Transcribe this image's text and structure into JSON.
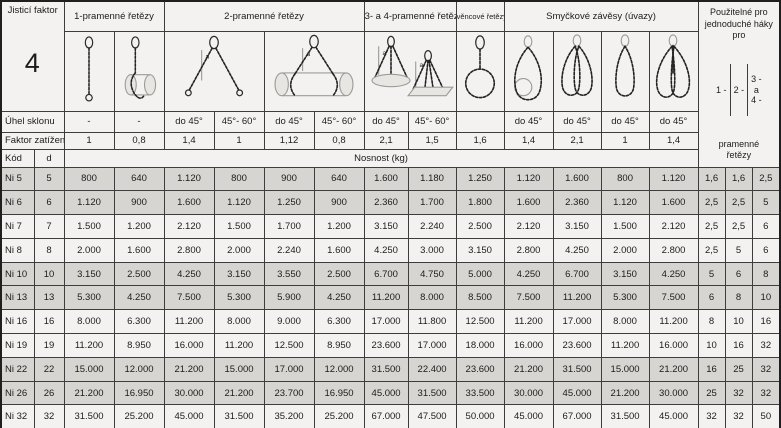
{
  "securing_factor": {
    "label": "Jisticí faktor",
    "value": "4"
  },
  "groups": [
    {
      "label": "1-pramenné řetězy"
    },
    {
      "label": "2-pramenné řetězy"
    },
    {
      "label": "3- a 4-pramenné řetězy"
    },
    {
      "label": "věncové řetězy"
    },
    {
      "label": "Smyčkové závěsy (úvazy)"
    }
  ],
  "right_header": {
    "title": "Použitelné pro\njednoduché háky\npro",
    "items": [
      "1 -",
      "2 -",
      "3 -\na\n4 -"
    ],
    "footer": "pramenné\nřetězy"
  },
  "diagram_angle_label": "a",
  "diagrams": [
    "single-leg-chain",
    "choked-drum-chain",
    "two-leg-chain",
    "two-leg-choked-drum",
    "three-and-four-leg-chain",
    "endless-chain",
    "loop-sling-choked",
    "loop-sling-double",
    "loop-sling-basket",
    "loop-sling-double-choked"
  ],
  "angle_row": {
    "label": "Úhel sklonu",
    "values": [
      "-",
      "-",
      "do 45°",
      "45°- 60°",
      "do 45°",
      "45°- 60°",
      "do 45°",
      "45°- 60°",
      "",
      "do 45°",
      "do 45°",
      "do 45°",
      "do 45°"
    ]
  },
  "factor_row": {
    "label": "Faktor zatížení",
    "values": [
      "1",
      "0,8",
      "1,4",
      "1",
      "1,12",
      "0,8",
      "2,1",
      "1,5",
      "1,6",
      "1,4",
      "2,1",
      "1",
      "1,4"
    ]
  },
  "capacity_header": {
    "kod": "Kód",
    "d": "d",
    "nosnost": "Nosnost  (kg)"
  },
  "rows": [
    {
      "kod": "Ni 5",
      "d": "5",
      "values": [
        "800",
        "640",
        "1.120",
        "800",
        "900",
        "640",
        "1.600",
        "1.180",
        "1.250",
        "1.120",
        "1.600",
        "800",
        "1.120"
      ],
      "hooks": [
        "1,6",
        "1,6",
        "2,5"
      ],
      "shaded": true
    },
    {
      "kod": "Ni 6",
      "d": "6",
      "values": [
        "1.120",
        "900",
        "1.600",
        "1.120",
        "1.250",
        "900",
        "2.360",
        "1.700",
        "1.800",
        "1.600",
        "2.360",
        "1.120",
        "1.600"
      ],
      "hooks": [
        "2,5",
        "2,5",
        "5"
      ],
      "shaded": true
    },
    {
      "kod": "Ni 7",
      "d": "7",
      "values": [
        "1.500",
        "1.200",
        "2.120",
        "1.500",
        "1.700",
        "1.200",
        "3.150",
        "2.240",
        "2.500",
        "2.120",
        "3.150",
        "1.500",
        "2.120"
      ],
      "hooks": [
        "2,5",
        "2,5",
        "6"
      ],
      "shaded": false
    },
    {
      "kod": "Ni 8",
      "d": "8",
      "values": [
        "2.000",
        "1.600",
        "2.800",
        "2.000",
        "2.240",
        "1.600",
        "4.250",
        "3.000",
        "3.150",
        "2.800",
        "4.250",
        "2.000",
        "2.800"
      ],
      "hooks": [
        "2,5",
        "5",
        "6"
      ],
      "shaded": false
    },
    {
      "kod": "Ni 10",
      "d": "10",
      "values": [
        "3.150",
        "2.500",
        "4.250",
        "3.150",
        "3.550",
        "2.500",
        "6.700",
        "4.750",
        "5.000",
        "4.250",
        "6.700",
        "3.150",
        "4.250"
      ],
      "hooks": [
        "5",
        "6",
        "8"
      ],
      "shaded": true
    },
    {
      "kod": "Ni 13",
      "d": "13",
      "values": [
        "5.300",
        "4.250",
        "7.500",
        "5.300",
        "5.900",
        "4.250",
        "11.200",
        "8.000",
        "8.500",
        "7.500",
        "11.200",
        "5.300",
        "7.500"
      ],
      "hooks": [
        "6",
        "8",
        "10"
      ],
      "shaded": true
    },
    {
      "kod": "Ni 16",
      "d": "16",
      "values": [
        "8.000",
        "6.300",
        "11.200",
        "8.000",
        "9.000",
        "6.300",
        "17.000",
        "11.800",
        "12.500",
        "11.200",
        "17.000",
        "8.000",
        "11.200"
      ],
      "hooks": [
        "8",
        "10",
        "16"
      ],
      "shaded": false
    },
    {
      "kod": "Ni 19",
      "d": "19",
      "values": [
        "11.200",
        "8.950",
        "16.000",
        "11.200",
        "12.500",
        "8.950",
        "23.600",
        "17.000",
        "18.000",
        "16.000",
        "23.600",
        "11.200",
        "16.000"
      ],
      "hooks": [
        "10",
        "16",
        "32"
      ],
      "shaded": false
    },
    {
      "kod": "Ni 22",
      "d": "22",
      "values": [
        "15.000",
        "12.000",
        "21.200",
        "15.000",
        "17.000",
        "12.000",
        "31.500",
        "22.400",
        "23.600",
        "21.200",
        "31.500",
        "15.000",
        "21.200"
      ],
      "hooks": [
        "16",
        "25",
        "32"
      ],
      "shaded": true
    },
    {
      "kod": "Ni 26",
      "d": "26",
      "values": [
        "21.200",
        "16.950",
        "30.000",
        "21.200",
        "23.700",
        "16.950",
        "45.000",
        "31.500",
        "33.500",
        "30.000",
        "45.000",
        "21.200",
        "30.000"
      ],
      "hooks": [
        "25",
        "32",
        "32"
      ],
      "shaded": true
    },
    {
      "kod": "Ni 32",
      "d": "32",
      "values": [
        "31.500",
        "25.200",
        "45.000",
        "31.500",
        "35.200",
        "25.200",
        "67.000",
        "47.500",
        "50.000",
        "45.000",
        "67.000",
        "31.500",
        "45.000"
      ],
      "hooks": [
        "32",
        "32",
        "50"
      ],
      "shaded": false
    }
  ]
}
